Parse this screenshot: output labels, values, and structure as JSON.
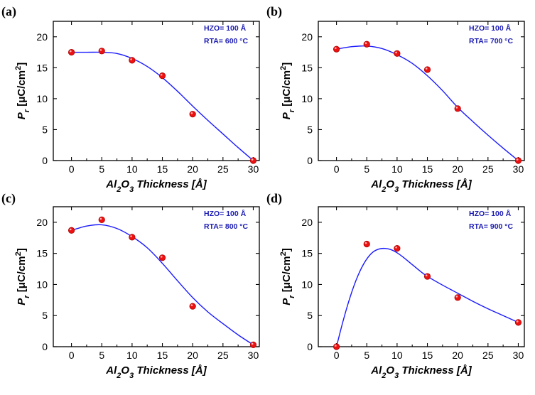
{
  "colors": {
    "fit": "#1a1aff",
    "marker": "#ee1111",
    "marker_edge": "#aa0000",
    "annotation": "#1b1bb3"
  },
  "chart_data": [
    {
      "type": "scatter",
      "panel_label": "(a)",
      "xlabel": "Al2O3 Thickness [Å]",
      "ylabel": "Pr [μC/cm2]",
      "xlim": [
        -3,
        31
      ],
      "ylim": [
        0,
        22.5
      ],
      "xticks": [
        "0",
        "5",
        "10",
        "15",
        "20",
        "25",
        "30"
      ],
      "yticks": [
        "0",
        "5",
        "10",
        "15",
        "20"
      ],
      "annotation": [
        "HZO= 100 Å",
        "RTA= 600 °C"
      ],
      "series": [
        {
          "x": [
            0,
            5,
            10,
            15,
            20,
            30
          ],
          "y": [
            17.5,
            17.7,
            16.2,
            13.7,
            7.5,
            0.0
          ]
        }
      ],
      "fit_curve": {
        "x": [
          0,
          2.5,
          5,
          7.5,
          10,
          12.5,
          15,
          17.5,
          20,
          22.5,
          25,
          27.5,
          30
        ],
        "y": [
          17.5,
          17.5,
          17.5,
          17.3,
          16.5,
          15.2,
          13.4,
          11.2,
          8.8,
          6.5,
          4.3,
          2.1,
          0.0
        ]
      }
    },
    {
      "type": "scatter",
      "panel_label": "(b)",
      "xlabel": "Al2O3 Thickness [Å]",
      "ylabel": "Pr [μC/cm2]",
      "xlim": [
        -3,
        31
      ],
      "ylim": [
        0,
        22.5
      ],
      "xticks": [
        "0",
        "5",
        "10",
        "15",
        "20",
        "25",
        "30"
      ],
      "yticks": [
        "0",
        "5",
        "10",
        "15",
        "20"
      ],
      "annotation": [
        "HZO= 100 Å",
        "RTA= 700 °C"
      ],
      "series": [
        {
          "x": [
            0,
            5,
            10,
            15,
            20,
            30
          ],
          "y": [
            18.0,
            18.8,
            17.3,
            14.7,
            8.4,
            0.0
          ]
        }
      ],
      "fit_curve": {
        "x": [
          0,
          2.5,
          5,
          7.5,
          10,
          12.5,
          15,
          17.5,
          20,
          22.5,
          25,
          27.5,
          30
        ],
        "y": [
          18.0,
          18.4,
          18.5,
          18.1,
          17.1,
          15.7,
          13.7,
          11.3,
          8.6,
          6.3,
          4.1,
          2.0,
          0.0
        ]
      }
    },
    {
      "type": "scatter",
      "panel_label": "(c)",
      "xlabel": "Al2O3 Thickness [Å]",
      "ylabel": "Pr [μC/cm2]",
      "xlim": [
        -3,
        31
      ],
      "ylim": [
        0,
        22.5
      ],
      "xticks": [
        "0",
        "5",
        "10",
        "15",
        "20",
        "25",
        "30"
      ],
      "yticks": [
        "0",
        "5",
        "10",
        "15",
        "20"
      ],
      "annotation": [
        "HZO= 100 Å",
        "RTA= 800 °C"
      ],
      "series": [
        {
          "x": [
            0,
            5,
            10,
            15,
            20,
            30
          ],
          "y": [
            18.7,
            20.4,
            17.6,
            14.3,
            6.5,
            0.3
          ]
        }
      ],
      "fit_curve": {
        "x": [
          0,
          2.5,
          5,
          7.5,
          10,
          12.5,
          15,
          17.5,
          20,
          22.5,
          25,
          27.5,
          30
        ],
        "y": [
          18.7,
          19.4,
          19.6,
          19.0,
          17.7,
          15.9,
          13.4,
          10.6,
          7.9,
          5.6,
          3.7,
          1.9,
          0.3
        ]
      }
    },
    {
      "type": "scatter",
      "panel_label": "(d)",
      "xlabel": "Al2O3 Thickness [Å]",
      "ylabel": "Pr [μC/cm2]",
      "xlim": [
        -3,
        31
      ],
      "ylim": [
        0,
        22.5
      ],
      "xticks": [
        "0",
        "5",
        "10",
        "15",
        "20",
        "25",
        "30"
      ],
      "yticks": [
        "0",
        "5",
        "10",
        "15",
        "20"
      ],
      "annotation": [
        "HZO= 100 Å",
        "RTA= 900 °C"
      ],
      "series": [
        {
          "x": [
            0,
            5,
            10,
            15,
            20,
            30
          ],
          "y": [
            0.0,
            16.5,
            15.8,
            11.3,
            7.9,
            3.9
          ]
        }
      ],
      "fit_curve": {
        "x": [
          0,
          1,
          2,
          3,
          4,
          5,
          6,
          7,
          8,
          9,
          10,
          11,
          12,
          13,
          14,
          15,
          17.5,
          20,
          22.5,
          25,
          27.5,
          30
        ],
        "y": [
          0.0,
          3.8,
          7.2,
          10.1,
          12.4,
          14.1,
          15.2,
          15.7,
          15.8,
          15.6,
          15.1,
          14.4,
          13.6,
          12.8,
          12.0,
          11.3,
          9.9,
          8.6,
          7.3,
          6.1,
          5.0,
          3.9
        ]
      }
    }
  ]
}
